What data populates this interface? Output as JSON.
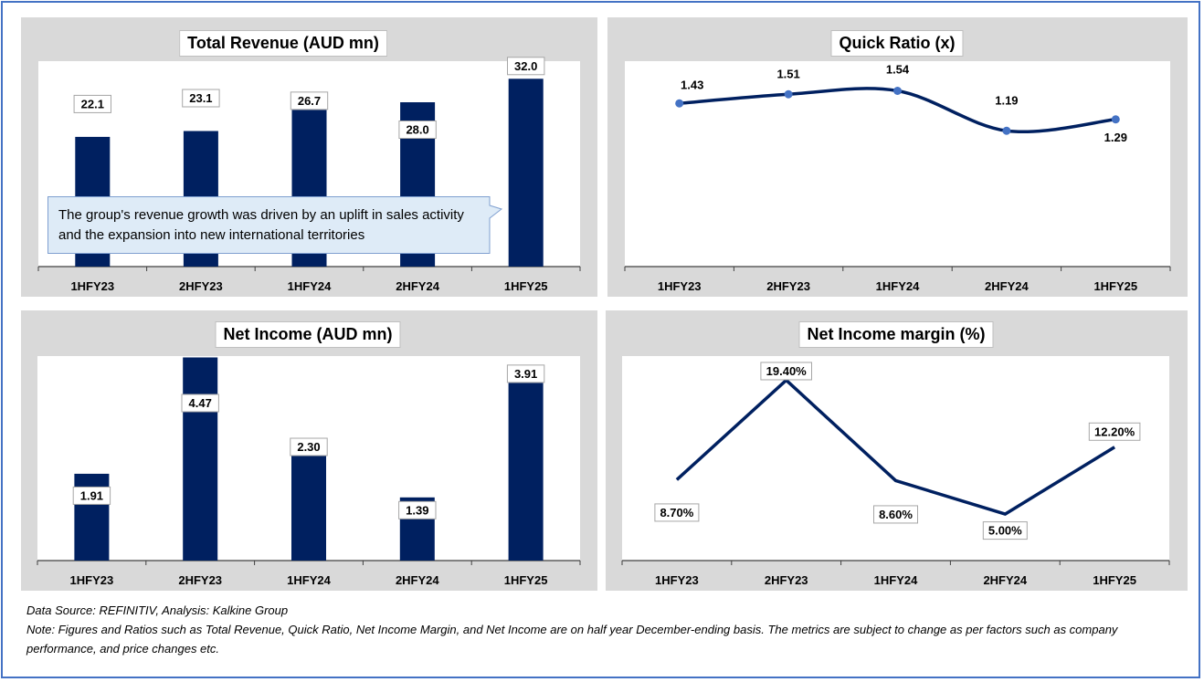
{
  "chart_data": [
    {
      "type": "bar",
      "title": "Total Revenue (AUD mn)",
      "categories": [
        "1HFY23",
        "2HFY23",
        "1HFY24",
        "2HFY24",
        "1HFY25"
      ],
      "values": [
        22.1,
        23.1,
        26.7,
        28.0,
        32.0
      ],
      "value_labels": [
        "22.1",
        "23.1",
        "26.7",
        "28.0",
        "32.0"
      ],
      "ylim": [
        0,
        35
      ],
      "color": "#002060",
      "annotation": "The group's revenue growth was driven by an uplift in sales activity and the expansion into new international territories"
    },
    {
      "type": "line",
      "title": "Quick Ratio (x)",
      "categories": [
        "1HFY23",
        "2HFY23",
        "1HFY24",
        "2HFY24",
        "1HFY25"
      ],
      "values": [
        1.43,
        1.51,
        1.54,
        1.19,
        1.29
      ],
      "value_labels": [
        "1.43",
        "1.51",
        "1.54",
        "1.19",
        "1.29"
      ],
      "ylim": [
        0,
        1.8
      ],
      "smooth": true,
      "color": "#002060",
      "marker_color": "#4472c4"
    },
    {
      "type": "bar",
      "title": "Net Income (AUD mn)",
      "categories": [
        "1HFY23",
        "2HFY23",
        "1HFY24",
        "2HFY24",
        "1HFY25"
      ],
      "values": [
        1.91,
        4.47,
        2.3,
        1.39,
        3.91
      ],
      "value_labels": [
        "1.91",
        "4.47",
        "2.30",
        "1.39",
        "3.91"
      ],
      "ylim": [
        0,
        4.5
      ],
      "color": "#002060"
    },
    {
      "type": "line",
      "title": "Net Income margin (%)",
      "categories": [
        "1HFY23",
        "2HFY23",
        "1HFY24",
        "2HFY24",
        "1HFY25"
      ],
      "values": [
        8.7,
        19.4,
        8.6,
        5.0,
        12.2
      ],
      "value_labels": [
        "8.70%",
        "19.40%",
        "8.60%",
        "5.00%",
        "12.20%"
      ],
      "ylim": [
        0,
        22
      ],
      "smooth": false,
      "color": "#002060"
    }
  ],
  "footer": {
    "source": "Data Source: REFINITIV, Analysis: Kalkine Group",
    "note": "Note: Figures and Ratios such as Total Revenue, Quick Ratio, Net Income Margin, and Net Income are on half year December-ending basis. The metrics are subject to change as per factors such as company performance, and price changes etc."
  }
}
